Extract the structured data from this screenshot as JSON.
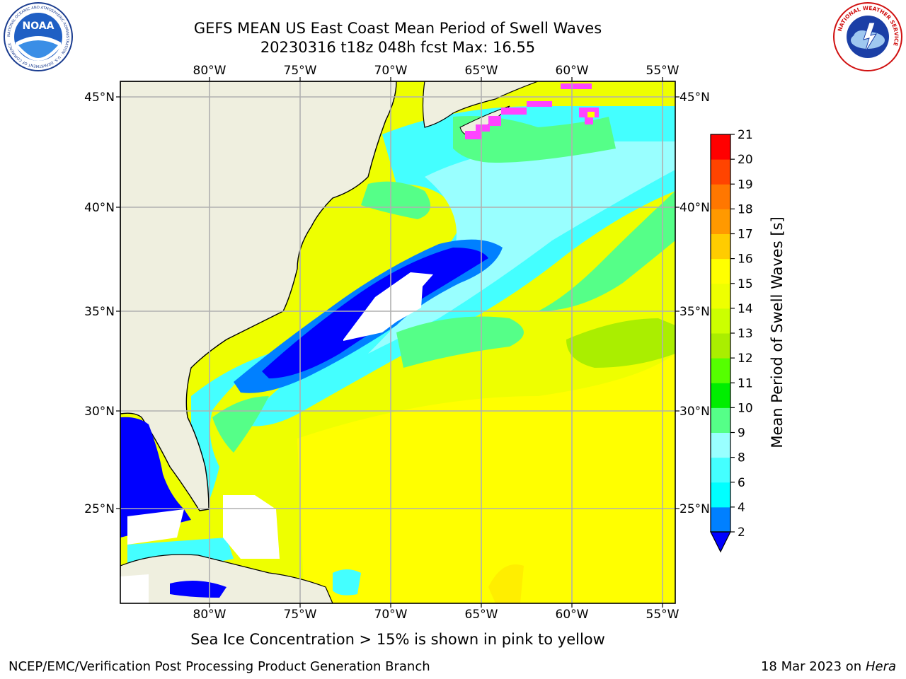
{
  "header": {
    "title": "GEFS MEAN US East Coast Mean Period of Swell Waves",
    "subtitle": "20230316 t18z 048h fcst   Max: 16.55"
  },
  "logos": {
    "noaa_text": "NOAA",
    "noaa_ring_text": "NATIONAL OCEANIC AND ATMOSPHERIC ADMINISTRATION · U.S. DEPARTMENT OF COMMERCE",
    "nws_ring_text": "NATIONAL WEATHER SERVICE"
  },
  "map": {
    "lon_labels_top": [
      "80°W",
      "75°W",
      "70°W",
      "65°W",
      "60°W",
      "55°W"
    ],
    "lon_labels_bottom": [
      "80°W",
      "75°W",
      "70°W",
      "65°W",
      "60°W",
      "55°W"
    ],
    "lat_labels_left": [
      "45°N",
      "40°N",
      "35°N",
      "30°N",
      "25°N"
    ],
    "lat_labels_right": [
      "45°N",
      "40°N",
      "35°N",
      "30°N",
      "25°N"
    ],
    "land_color": "#efefdf",
    "grid_color": "#b0b0b0"
  },
  "colorbar": {
    "label": "Mean Period of Swell Waves [s]",
    "ticks": [
      "21",
      "20",
      "19",
      "18",
      "17",
      "16",
      "15",
      "14",
      "13",
      "12",
      "11",
      "10",
      "9",
      "8",
      "6",
      "4",
      "2"
    ],
    "colors_low_to_high": [
      "#0080ff",
      "#00ffff",
      "#44ffff",
      "#99ffff",
      "#55ff88",
      "#00ee00",
      "#55ff00",
      "#aaee00",
      "#ccff00",
      "#eeff00",
      "#ffff00",
      "#ffcc00",
      "#ff9900",
      "#ff7700",
      "#ff4400",
      "#ff0000"
    ],
    "under_color": "#0000ff"
  },
  "footer": {
    "note": "Sea Ice Concentration > 15% is shown in pink to yellow",
    "credit": "NCEP/EMC/Verification Post Processing Product Generation Branch",
    "date": "18 Mar 2023 on",
    "machine": "Hera"
  }
}
